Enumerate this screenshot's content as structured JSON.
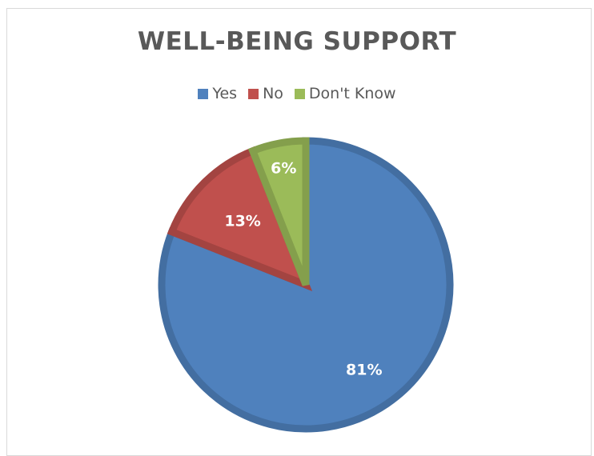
{
  "chart_data": {
    "type": "pie",
    "title": "WELL-BEING SUPPORT",
    "legend_position": "top",
    "categories": [
      "Yes",
      "No",
      "Don't Know"
    ],
    "values": [
      81,
      13,
      6
    ],
    "data_labels": [
      "81%",
      "13%",
      "6%"
    ],
    "colors": [
      "#4f81bd",
      "#c0504d",
      "#9bbb59"
    ]
  }
}
